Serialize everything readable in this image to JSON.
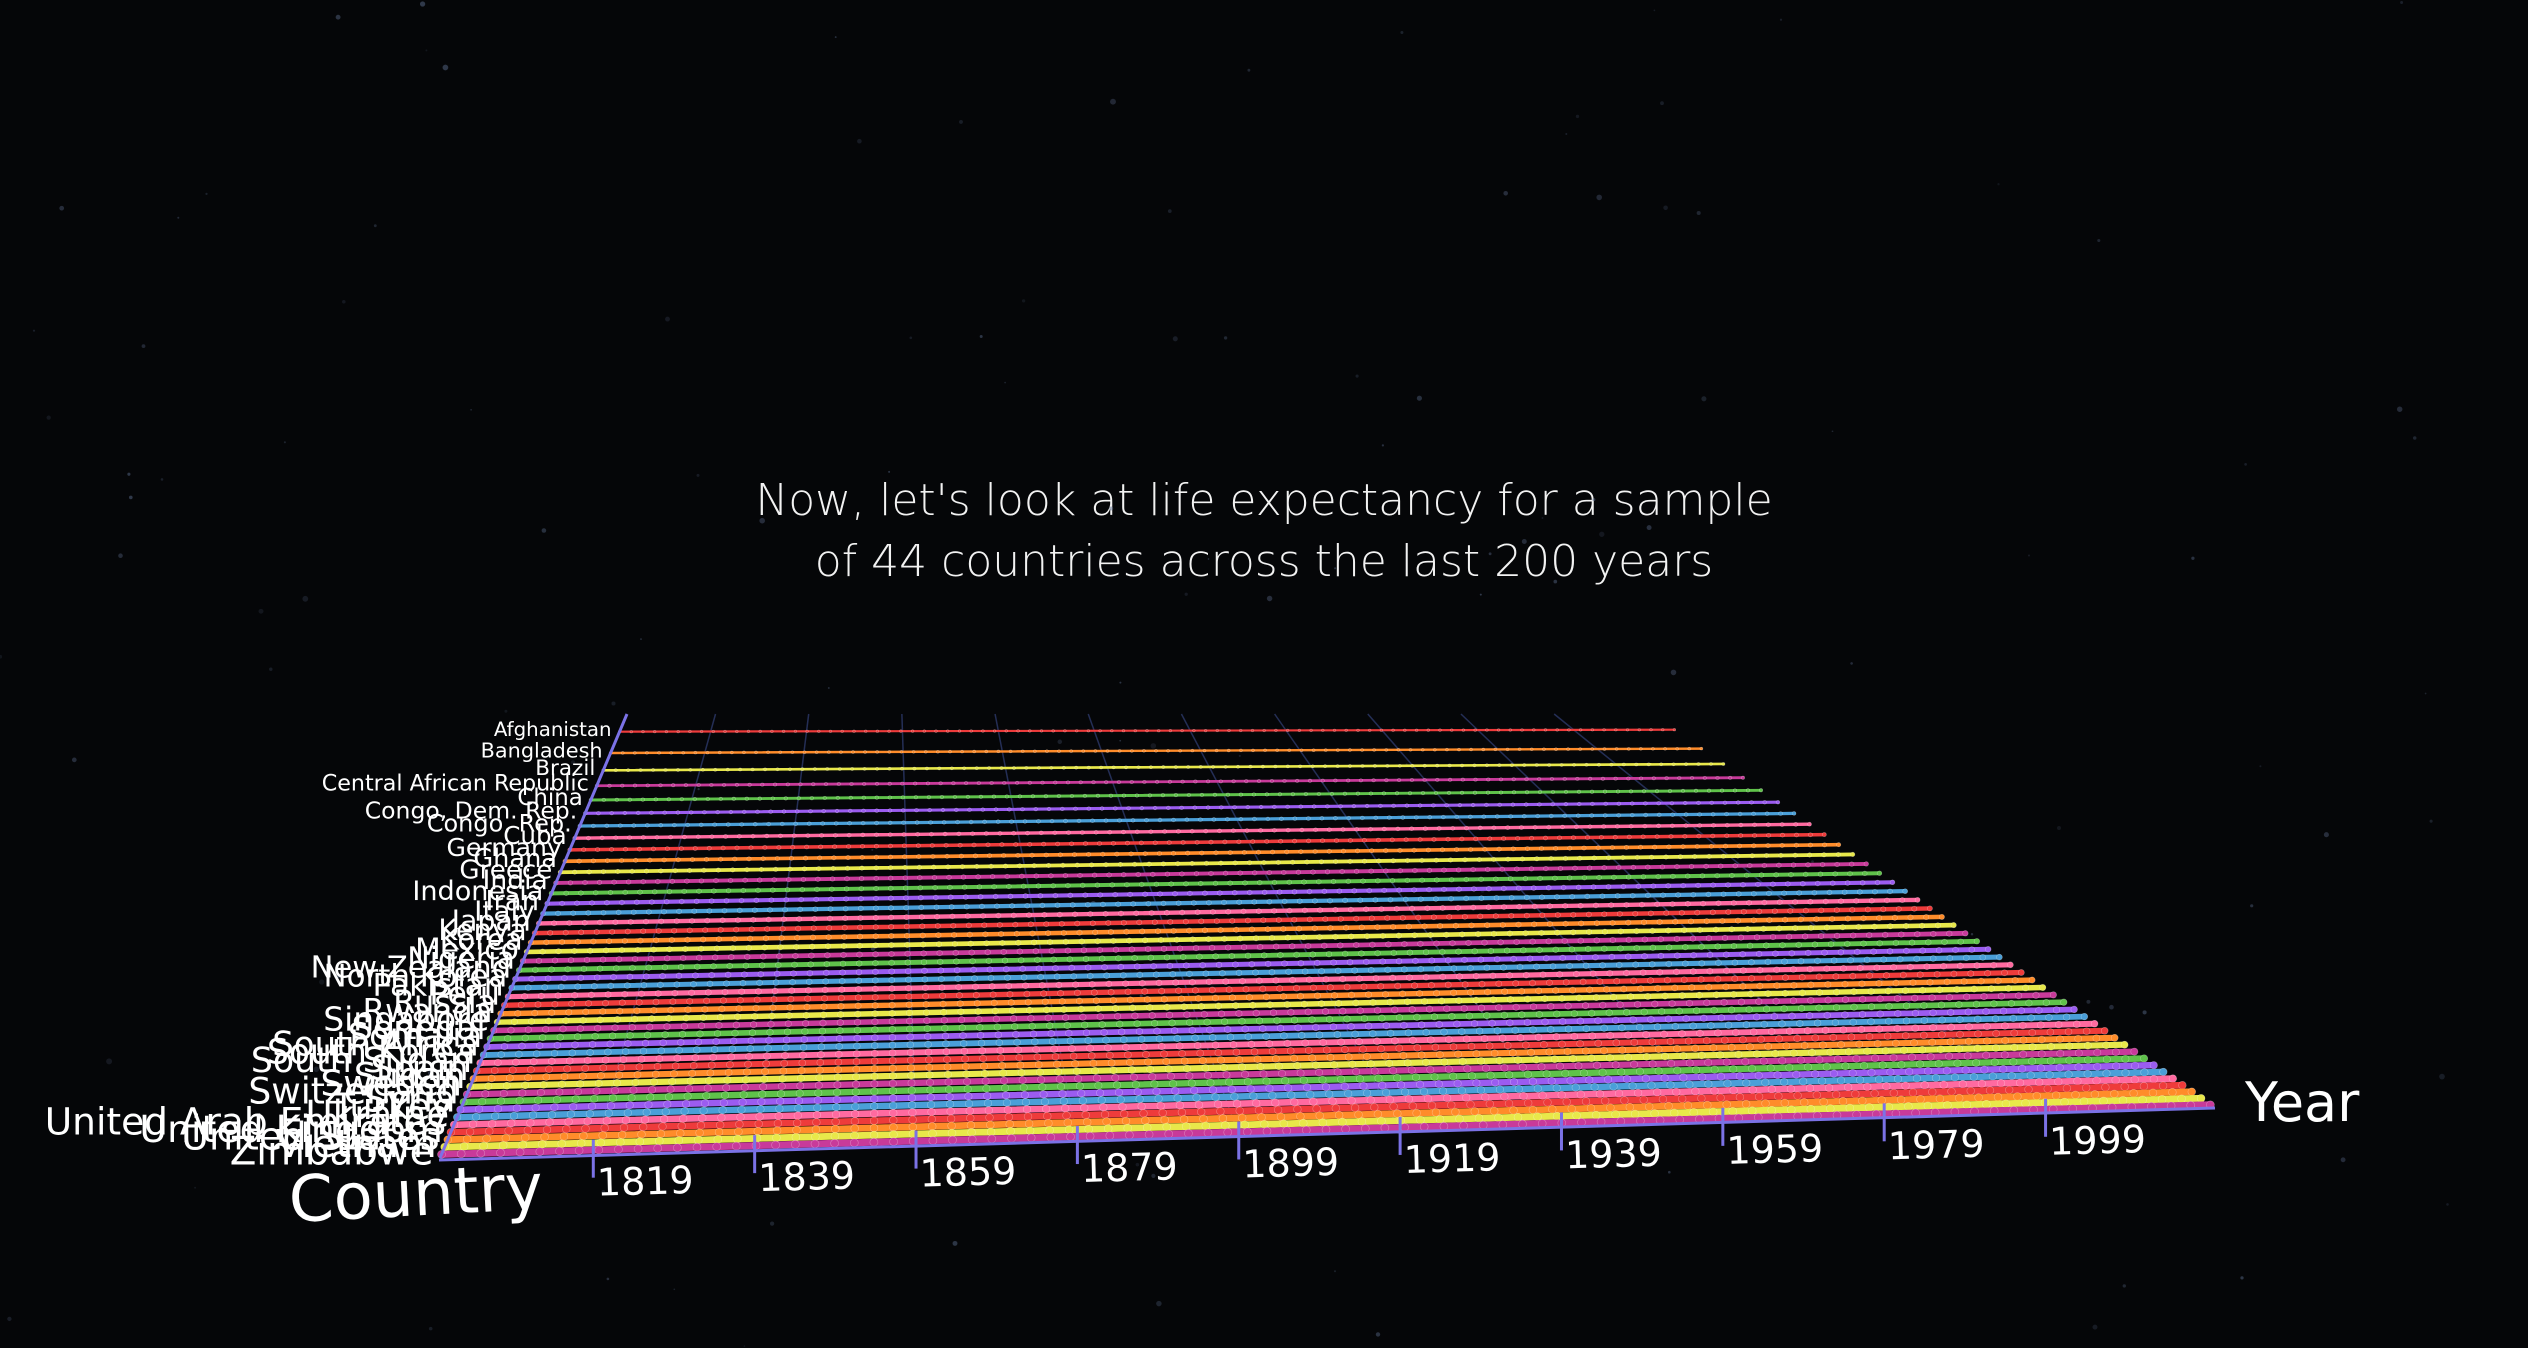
{
  "caption": {
    "line1": "Now, let's look at life expectancy for a sample",
    "line2": "of 44 countries across the last 200 years"
  },
  "chart_data": {
    "type": "scatter",
    "projection": "3d-perspective",
    "xlabel": "Year",
    "ylabel": "Country",
    "x_ticks": [
      1819,
      1839,
      1859,
      1879,
      1899,
      1919,
      1939,
      1959,
      1979,
      1999
    ],
    "x_range": [
      1800,
      2020
    ],
    "y_categories": [
      "Afghanistan",
      "Bangladesh",
      "Brazil",
      "Central African Republic",
      "China",
      "Congo, Dem. Rep.",
      "Congo, Rep.",
      "Cuba",
      "Germany",
      "Ghana",
      "Greece",
      "India",
      "Indonesia",
      "Iran",
      "Italy",
      "Japan",
      "Kenya",
      "Korea",
      "Mexico",
      "Nigeria",
      "New Zealand",
      "North Korea",
      "Pakistan",
      "Peru",
      "Russia",
      "Rwanda",
      "Singapore",
      "Senegal",
      "Somalia",
      "South Africa",
      "South Korea",
      "South Sudan",
      "Spain",
      "Sudan",
      "Sweden",
      "Switzerland",
      "Syria",
      "Turkey",
      "Ukraine",
      "United Arab Emirates",
      "United Kingdom",
      "United States",
      "Vietnam",
      "Zimbabwe"
    ],
    "series_colors": [
      "#ee3b3b",
      "#ff8c2a",
      "#e8e84a",
      "#c83a9a",
      "#5fc24a",
      "#9b5cf0",
      "#4a9fd8",
      "#ff6aa0"
    ],
    "axis_color": "#7b72e6",
    "background": "#050608",
    "grid": true
  }
}
